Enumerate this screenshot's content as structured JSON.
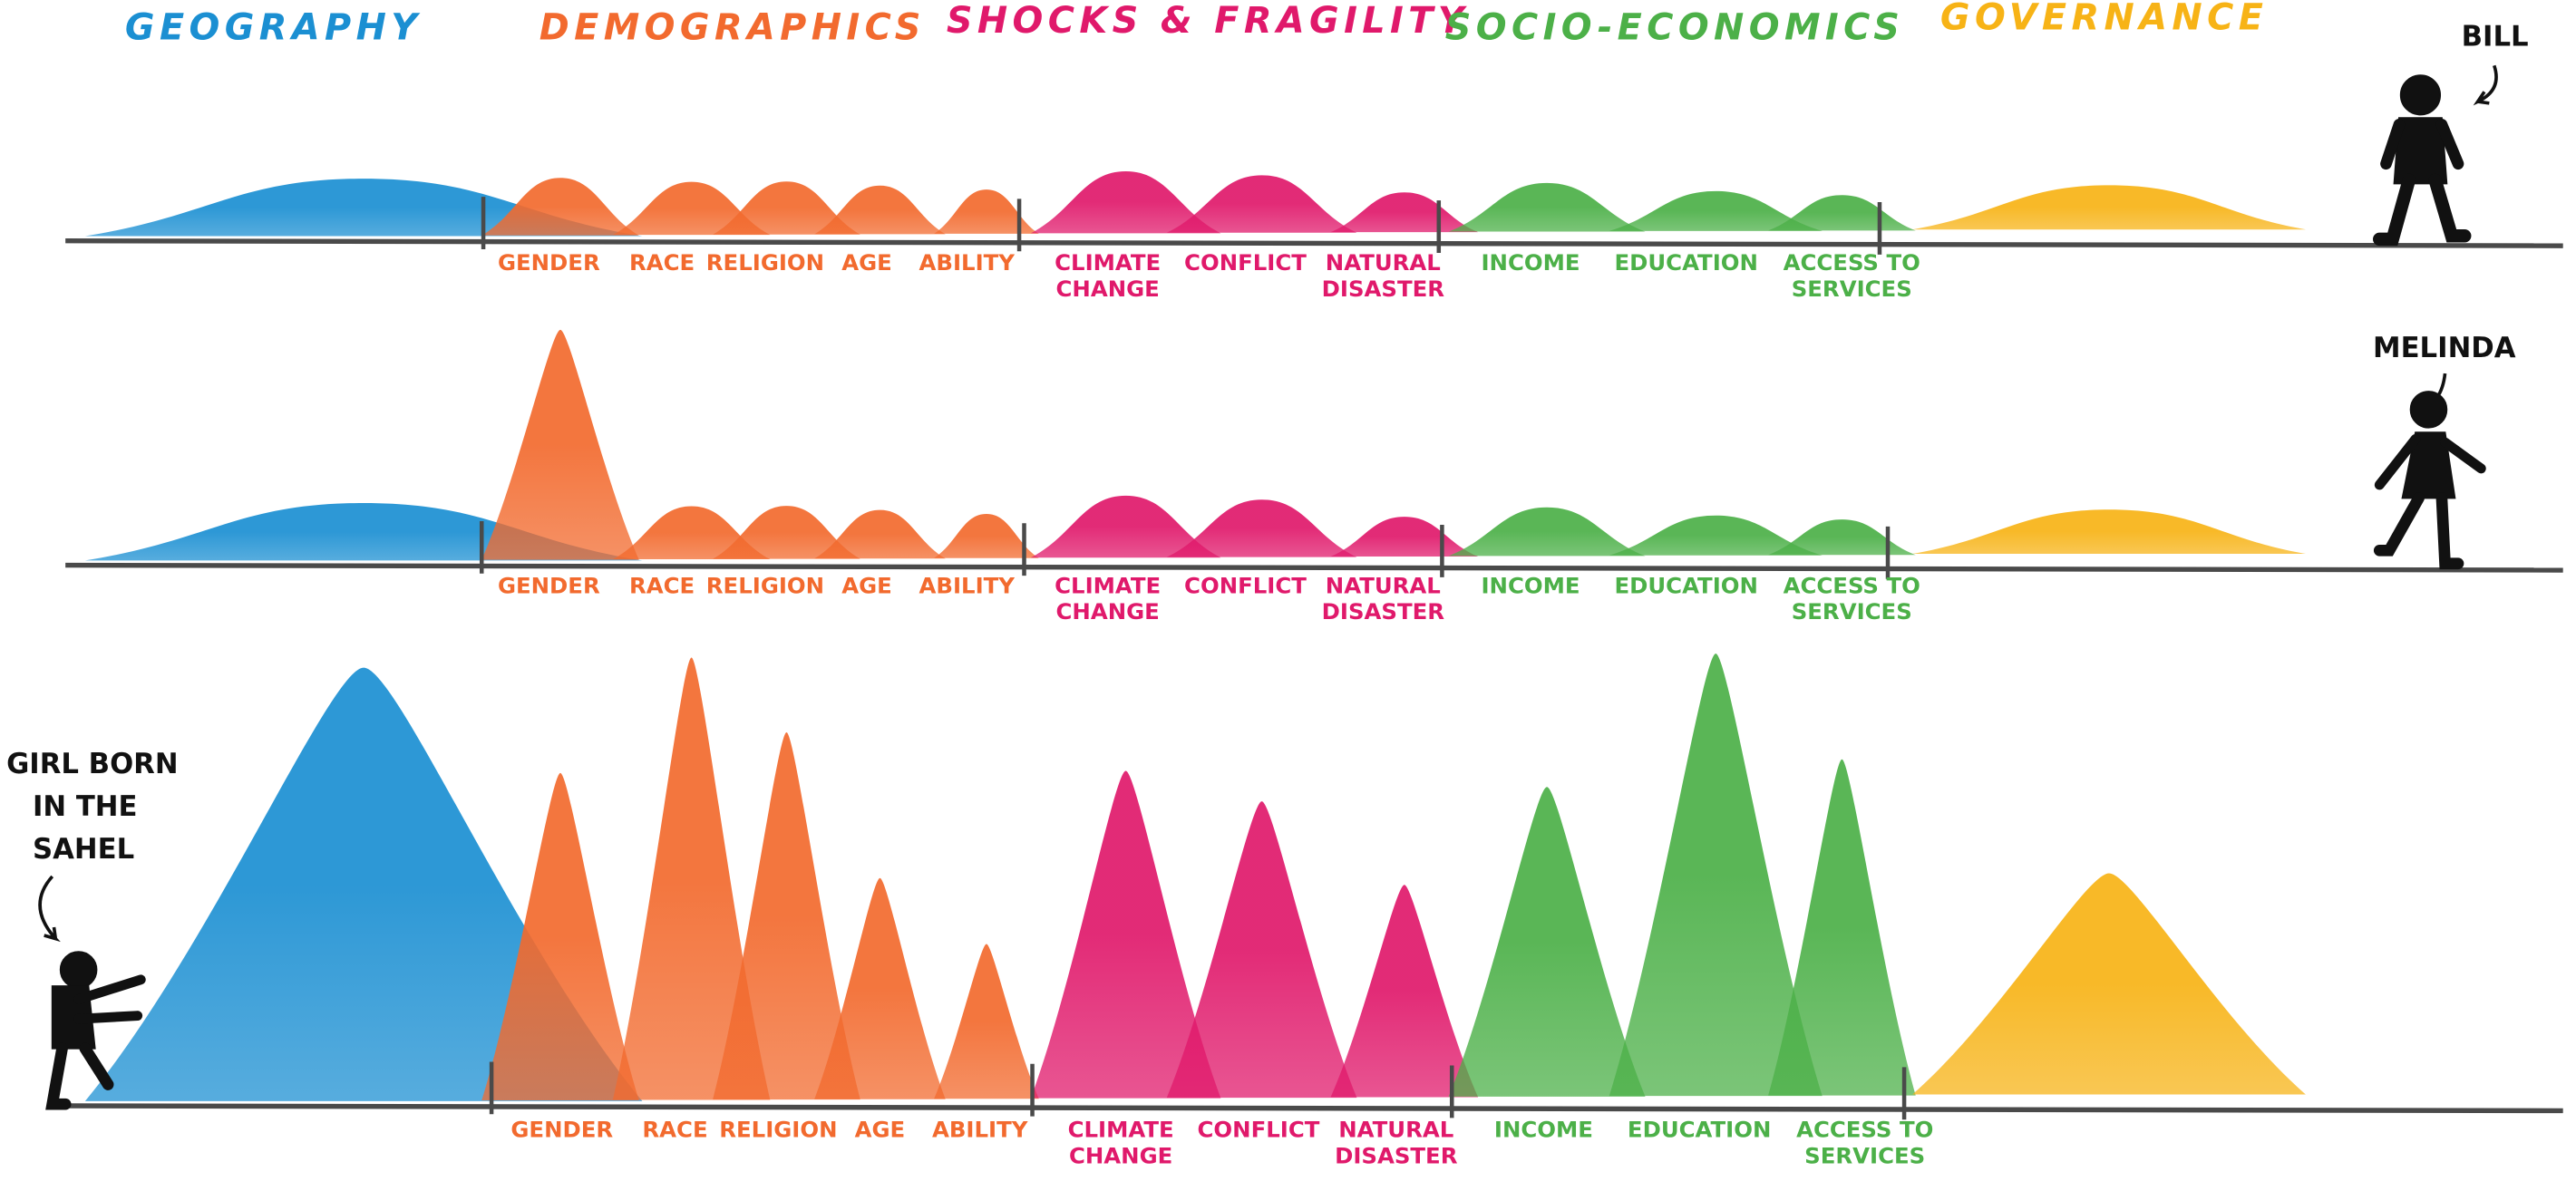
{
  "groups": [
    {
      "id": "geography",
      "title": "GEOGRAPHY",
      "color": "#1b8fd2"
    },
    {
      "id": "demographics",
      "title": "DEMOGRAPHICS",
      "color": "#f26a2e"
    },
    {
      "id": "shocks",
      "title": "SHOCKS & FRAGILITY",
      "color": "#e0196b"
    },
    {
      "id": "socio",
      "title": "SOCIO-ECONOMICS",
      "color": "#4cb048"
    },
    {
      "id": "governance",
      "title": "GOVERNANCE",
      "color": "#f7b316"
    }
  ],
  "labels": {
    "gender": [
      "GENDER"
    ],
    "race": [
      "RACE"
    ],
    "religion": [
      "RELIGION"
    ],
    "age": [
      "AGE"
    ],
    "ability": [
      "ABILITY"
    ],
    "climate": [
      "CLIMATE",
      "CHANGE"
    ],
    "conflict": [
      "CONFLICT"
    ],
    "natural": [
      "NATURAL",
      "DISASTER"
    ],
    "income": [
      "INCOME"
    ],
    "education": [
      "EDUCATION"
    ],
    "access": [
      "ACCESS TO",
      "SERVICES"
    ]
  },
  "people": {
    "bill": "BILL",
    "melinda": "MELINDA",
    "girl": [
      "GIRL BORN",
      "IN THE",
      "SAHEL"
    ]
  },
  "rows_barrier_levels": {
    "bill": {
      "geography": 13,
      "gender": 13,
      "race": 12,
      "religion": 12,
      "age": 11,
      "ability": 10,
      "climate": 14,
      "conflict": 13,
      "natural": 9,
      "income": 11,
      "education": 9,
      "access": 8,
      "governance": 10
    },
    "melinda": {
      "geography": 13,
      "gender": 52,
      "race": 12,
      "religion": 12,
      "age": 11,
      "ability": 10,
      "climate": 14,
      "conflict": 13,
      "natural": 9,
      "income": 11,
      "education": 9,
      "access": 8,
      "governance": 10
    },
    "girl": {
      "geography": 98,
      "gender": 74,
      "race": 100,
      "religion": 83,
      "age": 50,
      "ability": 35,
      "climate": 74,
      "conflict": 67,
      "natural": 48,
      "income": 70,
      "education": 100,
      "access": 76,
      "governance": 50
    }
  }
}
